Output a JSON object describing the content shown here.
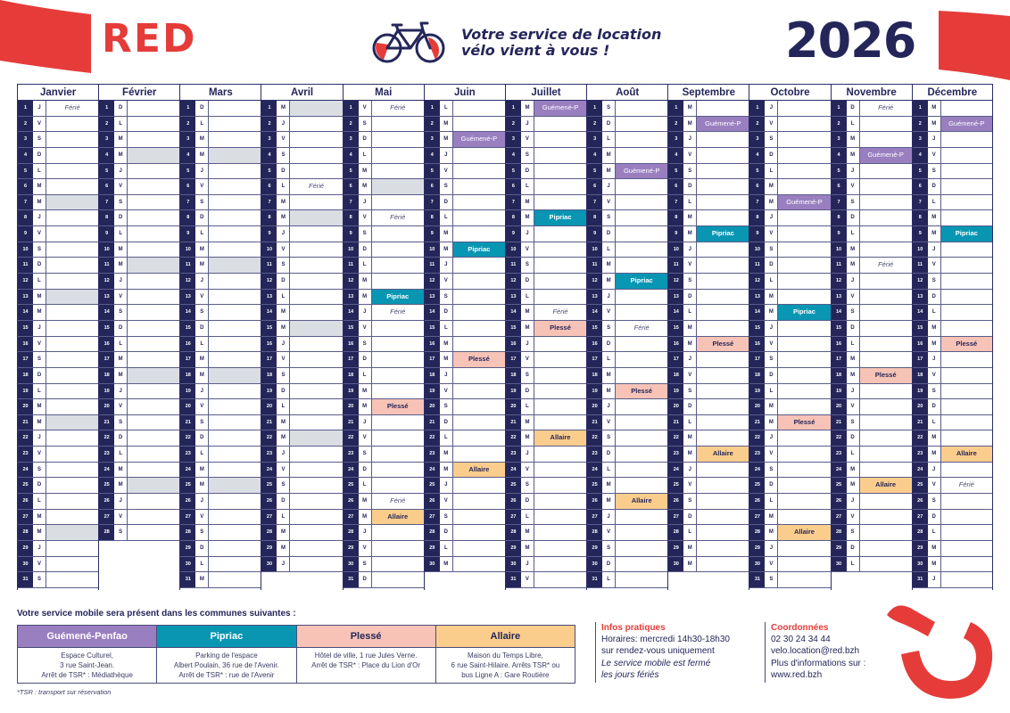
{
  "header": {
    "logo": "RED",
    "tagline_line1": "Votre service de location",
    "tagline_line2": "vélo vient à vous !",
    "year": "2026",
    "brand_color": "#e53c3a",
    "navy_color": "#24265a"
  },
  "calendar": {
    "months": [
      {
        "name": "Janvier",
        "days": 31,
        "first_weekday": 4
      },
      {
        "name": "Février",
        "days": 28,
        "first_weekday": 0
      },
      {
        "name": "Mars",
        "days": 31,
        "first_weekday": 0
      },
      {
        "name": "Avril",
        "days": 30,
        "first_weekday": 3
      },
      {
        "name": "Mai",
        "days": 31,
        "first_weekday": 5
      },
      {
        "name": "Juin",
        "days": 30,
        "first_weekday": 1
      },
      {
        "name": "Juillet",
        "days": 31,
        "first_weekday": 3
      },
      {
        "name": "Août",
        "days": 31,
        "first_weekday": 6
      },
      {
        "name": "Septembre",
        "days": 30,
        "first_weekday": 2
      },
      {
        "name": "Octobre",
        "days": 31,
        "first_weekday": 4
      },
      {
        "name": "Novembre",
        "days": 30,
        "first_weekday": 0
      },
      {
        "name": "Décembre",
        "days": 31,
        "first_weekday": 2
      }
    ],
    "weekday_letters": [
      "D",
      "L",
      "M",
      "M",
      "J",
      "V",
      "S"
    ],
    "ferie_label": "Férié",
    "ferie_days": [
      [
        1,
        1
      ],
      [
        4,
        6
      ],
      [
        5,
        1
      ],
      [
        5,
        8
      ],
      [
        5,
        14
      ],
      [
        5,
        26
      ],
      [
        7,
        14
      ],
      [
        8,
        15
      ],
      [
        11,
        1
      ],
      [
        11,
        11
      ],
      [
        12,
        25
      ]
    ],
    "grey_days": [
      [
        1,
        7
      ],
      [
        1,
        13
      ],
      [
        1,
        21
      ],
      [
        1,
        28
      ],
      [
        2,
        4
      ],
      [
        2,
        11
      ],
      [
        2,
        18
      ],
      [
        2,
        25
      ],
      [
        3,
        4
      ],
      [
        3,
        11
      ],
      [
        3,
        18
      ],
      [
        3,
        25
      ],
      [
        4,
        1
      ],
      [
        4,
        8
      ],
      [
        4,
        15
      ],
      [
        4,
        22
      ],
      [
        5,
        6
      ]
    ],
    "event_types": {
      "guemene": {
        "label": "Guémené-P",
        "color": "#9a7fc0"
      },
      "pipriac": {
        "label": "Pipriac",
        "color": "#0896b3"
      },
      "plesse": {
        "label": "Plessé",
        "color": "#f6c3b6"
      },
      "allaire": {
        "label": "Allaire",
        "color": "#fbcd8c"
      }
    },
    "events": [
      [
        6,
        3,
        "guemene"
      ],
      [
        7,
        1,
        "guemene"
      ],
      [
        8,
        5,
        "guemene"
      ],
      [
        9,
        2,
        "guemene"
      ],
      [
        10,
        7,
        "guemene"
      ],
      [
        11,
        4,
        "guemene"
      ],
      [
        12,
        2,
        "guemene"
      ],
      [
        5,
        13,
        "pipriac"
      ],
      [
        6,
        10,
        "pipriac"
      ],
      [
        7,
        8,
        "pipriac"
      ],
      [
        8,
        12,
        "pipriac"
      ],
      [
        9,
        9,
        "pipriac"
      ],
      [
        10,
        14,
        "pipriac"
      ],
      [
        12,
        9,
        "pipriac"
      ],
      [
        5,
        20,
        "plesse"
      ],
      [
        6,
        17,
        "plesse"
      ],
      [
        7,
        15,
        "plesse"
      ],
      [
        8,
        19,
        "plesse"
      ],
      [
        9,
        16,
        "plesse"
      ],
      [
        10,
        21,
        "plesse"
      ],
      [
        11,
        18,
        "plesse"
      ],
      [
        12,
        16,
        "plesse"
      ],
      [
        5,
        27,
        "allaire"
      ],
      [
        6,
        24,
        "allaire"
      ],
      [
        7,
        22,
        "allaire"
      ],
      [
        8,
        26,
        "allaire"
      ],
      [
        9,
        23,
        "allaire"
      ],
      [
        10,
        28,
        "allaire"
      ],
      [
        11,
        25,
        "allaire"
      ],
      [
        12,
        23,
        "allaire"
      ]
    ]
  },
  "footer": {
    "title": "Votre service mobile sera présent dans les communes suivantes :",
    "communes": [
      {
        "name": "Guémené-Penfao",
        "color": "#9a7fc0",
        "text_color": "#ffffff",
        "lines": [
          "Espace Culturel,",
          "3 rue Saint-Jean.",
          "Arrêt de TSR* : Médiathèque"
        ]
      },
      {
        "name": "Pipriac",
        "color": "#0896b3",
        "text_color": "#ffffff",
        "lines": [
          "Parking de l'espace",
          "Albert Poulain, 36 rue de l'Avenir.",
          "Arrêt de TSR* : rue de l'Avenir"
        ]
      },
      {
        "name": "Plessé",
        "color": "#f6c3b6",
        "text_color": "#24265a",
        "lines": [
          "Hôtel de ville, 1 rue Jules Verne.",
          "Arrêt de TSR* : Place du Lion d'Or"
        ]
      },
      {
        "name": "Allaire",
        "color": "#fbcd8c",
        "text_color": "#24265a",
        "lines": [
          "Maison du Temps Libre,",
          "6 rue Saint-Hilaire. Arrêts TSR* ou",
          "bus Ligne A : Gare Routière"
        ]
      }
    ],
    "tsr_note": "*TSR : transport sur réservation",
    "infos": {
      "title": "Infos pratiques",
      "line1": "Horaires: mercredi 14h30-18h30",
      "line2": "sur rendez-vous uniquement",
      "line3": "Le service mobile est fermé",
      "line4": "les jours fériés"
    },
    "contact": {
      "title": "Coordonnées",
      "phone": "02 30 24 34 44",
      "email": "velo.location@red.bzh",
      "more": "Plus d'informations sur :",
      "website": "www.red.bzh"
    }
  }
}
